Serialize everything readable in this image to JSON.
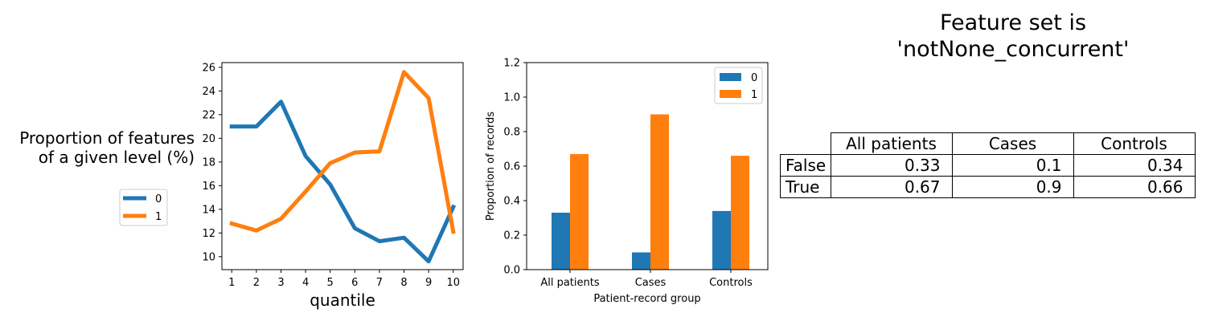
{
  "chart_data": [
    {
      "type": "line",
      "ylabel": "Proportion of features\nof a given level (%)",
      "xlabel": "quantile",
      "x": [
        1,
        2,
        3,
        4,
        5,
        6,
        7,
        8,
        9,
        10
      ],
      "xlim": [
        0.6,
        10.4
      ],
      "ylim": [
        8.9,
        26.4
      ],
      "yticks": [
        10,
        12,
        14,
        16,
        18,
        20,
        22,
        24,
        26
      ],
      "legend": "outside-left",
      "series": [
        {
          "name": "0",
          "color": "#1f77b4",
          "values": [
            21.0,
            21.0,
            23.1,
            18.5,
            16.1,
            12.4,
            11.3,
            11.6,
            9.6,
            14.2
          ]
        },
        {
          "name": "1",
          "color": "#ff7f0e",
          "values": [
            12.8,
            12.2,
            13.2,
            15.5,
            17.9,
            18.8,
            18.9,
            25.6,
            23.4,
            12.1
          ]
        }
      ]
    },
    {
      "type": "bar",
      "xlabel": "Patient-record group",
      "ylabel": "Proportion of records",
      "categories": [
        "All patients",
        "Cases",
        "Controls"
      ],
      "ylim": [
        0,
        1.2
      ],
      "yticks": [
        "0.0",
        "0.2",
        "0.4",
        "0.6",
        "0.8",
        "1.0",
        "1.2"
      ],
      "legend": "top-right",
      "series": [
        {
          "name": "0",
          "color": "#1f77b4",
          "values": [
            0.33,
            0.1,
            0.34
          ]
        },
        {
          "name": "1",
          "color": "#ff7f0e",
          "values": [
            0.67,
            0.9,
            0.66
          ]
        }
      ]
    },
    {
      "type": "table",
      "title": "Feature set is\n'notNone_concurrent'",
      "columns": [
        "All patients",
        "Cases",
        "Controls"
      ],
      "rows": [
        {
          "label": "False",
          "values": [
            "0.33",
            "0.1",
            "0.34"
          ]
        },
        {
          "label": "True",
          "values": [
            "0.67",
            "0.9",
            "0.66"
          ]
        }
      ]
    }
  ]
}
